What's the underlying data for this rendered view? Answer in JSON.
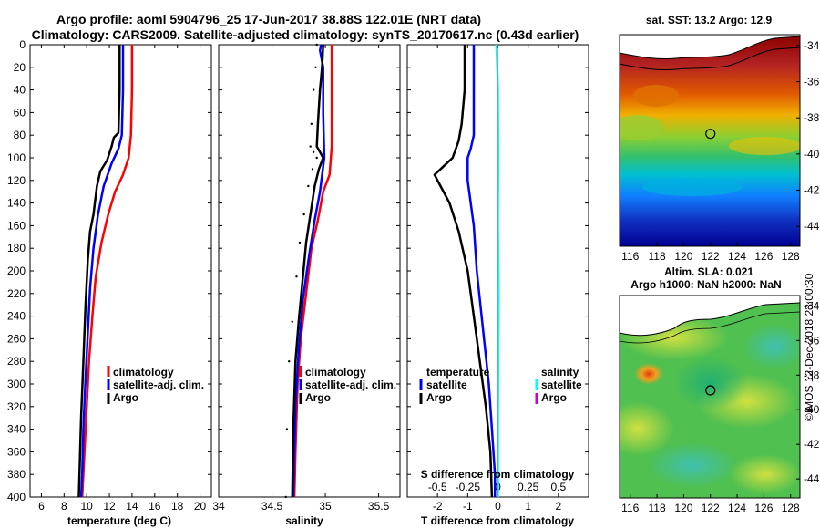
{
  "header": {
    "line1": "Argo profile: aoml 5904796_25 17-Jun-2017 38.88S 122.01E (NRT data)",
    "line2": "Climatology: CARS2009. Satellite-adjusted climatology: synTS_20170617.nc (0.43d earlier)"
  },
  "credit": "©IMOS 12-Dec-2018 23:00:30",
  "colors": {
    "climatology": "#ff0000",
    "satellite": "#0000ff",
    "argo": "#000000",
    "satellite_salinity": "#00ffff",
    "argo_salinity": "#cc00cc"
  },
  "chart_data": [
    {
      "type": "line",
      "title": "",
      "xlabel": "temperature (deg C)",
      "ylabel": "",
      "xlim": [
        5,
        21
      ],
      "ylim": [
        400,
        0
      ],
      "xticks": [
        "6",
        "8",
        "10",
        "12",
        "14",
        "16",
        "18",
        "20"
      ],
      "yticks": [
        "0",
        "20",
        "40",
        "60",
        "80",
        "100",
        "120",
        "140",
        "160",
        "180",
        "200",
        "220",
        "240",
        "260",
        "280",
        "300",
        "320",
        "340",
        "360",
        "380",
        "400"
      ],
      "legend": [
        "climatology",
        "satellite-adj. clim.",
        "Argo"
      ],
      "series": [
        {
          "name": "climatology",
          "color": "#ff0000",
          "points": [
            [
              14.0,
              0
            ],
            [
              14.0,
              40
            ],
            [
              13.9,
              80
            ],
            [
              13.7,
              100
            ],
            [
              13.2,
              115
            ],
            [
              12.5,
              130
            ],
            [
              11.9,
              150
            ],
            [
              11.3,
              175
            ],
            [
              10.8,
              205
            ],
            [
              10.5,
              240
            ],
            [
              10.2,
              280
            ],
            [
              10.0,
              320
            ],
            [
              9.8,
              360
            ],
            [
              9.6,
              400
            ]
          ]
        },
        {
          "name": "satellite-adj. clim.",
          "color": "#0000ff",
          "points": [
            [
              13.2,
              0
            ],
            [
              13.2,
              40
            ],
            [
              13.1,
              80
            ],
            [
              12.8,
              92
            ],
            [
              12.2,
              105
            ],
            [
              11.5,
              125
            ],
            [
              11.0,
              150
            ],
            [
              10.6,
              180
            ],
            [
              10.3,
              215
            ],
            [
              10.1,
              255
            ],
            [
              9.9,
              295
            ],
            [
              9.7,
              340
            ],
            [
              9.6,
              380
            ],
            [
              9.5,
              400
            ]
          ]
        },
        {
          "name": "Argo",
          "color": "#000000",
          "points": [
            [
              12.9,
              0
            ],
            [
              12.9,
              40
            ],
            [
              12.8,
              78
            ],
            [
              12.4,
              82
            ],
            [
              12.2,
              90
            ],
            [
              11.8,
              102
            ],
            [
              11.2,
              112
            ],
            [
              10.9,
              125
            ],
            [
              10.6,
              150
            ],
            [
              10.3,
              165
            ],
            [
              10.1,
              190
            ],
            [
              9.9,
              230
            ],
            [
              9.7,
              280
            ],
            [
              9.5,
              330
            ],
            [
              9.3,
              400
            ]
          ]
        }
      ]
    },
    {
      "type": "line",
      "xlabel": "salinity",
      "xlim": [
        34,
        35.7
      ],
      "ylim": [
        400,
        0
      ],
      "xticks": [
        "34",
        "34.5",
        "35",
        "35.5"
      ],
      "legend": [
        "climatology",
        "satellite-adj. clim.",
        "Argo"
      ],
      "series": [
        {
          "name": "climatology",
          "color": "#ff0000",
          "points": [
            [
              35.06,
              0
            ],
            [
              35.06,
              40
            ],
            [
              35.06,
              90
            ],
            [
              35.04,
              115
            ],
            [
              34.98,
              130
            ],
            [
              34.93,
              155
            ],
            [
              34.87,
              180
            ],
            [
              34.82,
              220
            ],
            [
              34.77,
              260
            ],
            [
              34.74,
              300
            ],
            [
              34.72,
              360
            ],
            [
              34.71,
              400
            ]
          ]
        },
        {
          "name": "satellite-adj. clim.",
          "color": "#0000ff",
          "points": [
            [
              34.96,
              0
            ],
            [
              34.95,
              5
            ],
            [
              34.98,
              20
            ],
            [
              34.98,
              60
            ],
            [
              34.99,
              100
            ],
            [
              34.95,
              130
            ],
            [
              34.9,
              155
            ],
            [
              34.85,
              185
            ],
            [
              34.79,
              225
            ],
            [
              34.75,
              270
            ],
            [
              34.72,
              320
            ],
            [
              34.7,
              400
            ]
          ]
        },
        {
          "name": "Argo",
          "color": "#000000",
          "points": [
            [
              34.98,
              0
            ],
            [
              34.97,
              20
            ],
            [
              34.95,
              40
            ],
            [
              34.93,
              70
            ],
            [
              34.92,
              90
            ],
            [
              34.95,
              95
            ],
            [
              34.98,
              100
            ],
            [
              34.94,
              110
            ],
            [
              34.9,
              125
            ],
            [
              34.86,
              150
            ],
            [
              34.82,
              175
            ],
            [
              34.79,
              205
            ],
            [
              34.75,
              245
            ],
            [
              34.72,
              280
            ],
            [
              34.7,
              340
            ],
            [
              34.69,
              400
            ]
          ]
        }
      ]
    },
    {
      "type": "line",
      "xlabel": "T difference from climatology",
      "xlabel2": "S difference from climatology",
      "xlim": [
        -3,
        3
      ],
      "s_xlim": [
        -0.75,
        0.75
      ],
      "ylim": [
        400,
        0
      ],
      "xticks": [
        "-2",
        "-1",
        "0",
        "1",
        "2"
      ],
      "s_xticks": [
        "-0.5",
        "-0.25",
        "0",
        "0.25",
        "0.5"
      ],
      "legend_temperature": [
        "temperature",
        "satellite",
        "Argo"
      ],
      "legend_salinity": [
        "salinity",
        "satellite",
        "Argo"
      ],
      "series": [
        {
          "name": "T satellite",
          "color": "#0000ff",
          "points": [
            [
              -0.8,
              0
            ],
            [
              -0.8,
              40
            ],
            [
              -0.8,
              80
            ],
            [
              -0.9,
              92
            ],
            [
              -1.0,
              100
            ],
            [
              -1.0,
              120
            ],
            [
              -0.8,
              160
            ],
            [
              -0.7,
              200
            ],
            [
              -0.5,
              250
            ],
            [
              -0.3,
              300
            ],
            [
              -0.2,
              340
            ],
            [
              -0.1,
              380
            ],
            [
              -0.1,
              400
            ]
          ]
        },
        {
          "name": "T Argo",
          "color": "#000000",
          "points": [
            [
              -1.1,
              0
            ],
            [
              -1.1,
              40
            ],
            [
              -1.2,
              70
            ],
            [
              -1.3,
              85
            ],
            [
              -1.5,
              100
            ],
            [
              -1.9,
              110
            ],
            [
              -2.1,
              115
            ],
            [
              -1.9,
              125
            ],
            [
              -1.6,
              140
            ],
            [
              -1.3,
              165
            ],
            [
              -1.0,
              200
            ],
            [
              -0.8,
              240
            ],
            [
              -0.6,
              280
            ],
            [
              -0.4,
              320
            ],
            [
              -0.25,
              360
            ],
            [
              -0.2,
              400
            ]
          ]
        },
        {
          "name": "S satellite",
          "color": "#00ffff",
          "points": [
            [
              -0.05,
              0
            ],
            [
              -0.02,
              20
            ],
            [
              0.0,
              40
            ],
            [
              0.01,
              100
            ],
            [
              0.0,
              160
            ],
            [
              0.02,
              220
            ],
            [
              0.01,
              280
            ],
            [
              0.0,
              340
            ],
            [
              0.0,
              400
            ]
          ]
        }
      ]
    }
  ],
  "maps": [
    {
      "title": "sat. SST: 13.2 Argo: 12.9",
      "yticks": [
        "-34",
        "-36",
        "-38",
        "-40",
        "-42",
        "-44"
      ],
      "xticks": [
        "116",
        "118",
        "120",
        "122",
        "124",
        "126",
        "128"
      ],
      "argo_position": [
        122.0,
        -38.88
      ]
    },
    {
      "title_line1": "Altim. SLA: 0.021",
      "title_line2": "Argo h1000: NaN h2000: NaN",
      "yticks": [
        "-34",
        "-36",
        "-38",
        "-40",
        "-42",
        "-44"
      ],
      "xticks": [
        "116",
        "118",
        "120",
        "122",
        "124",
        "126",
        "128"
      ],
      "argo_position": [
        122.0,
        -38.88
      ]
    }
  ]
}
